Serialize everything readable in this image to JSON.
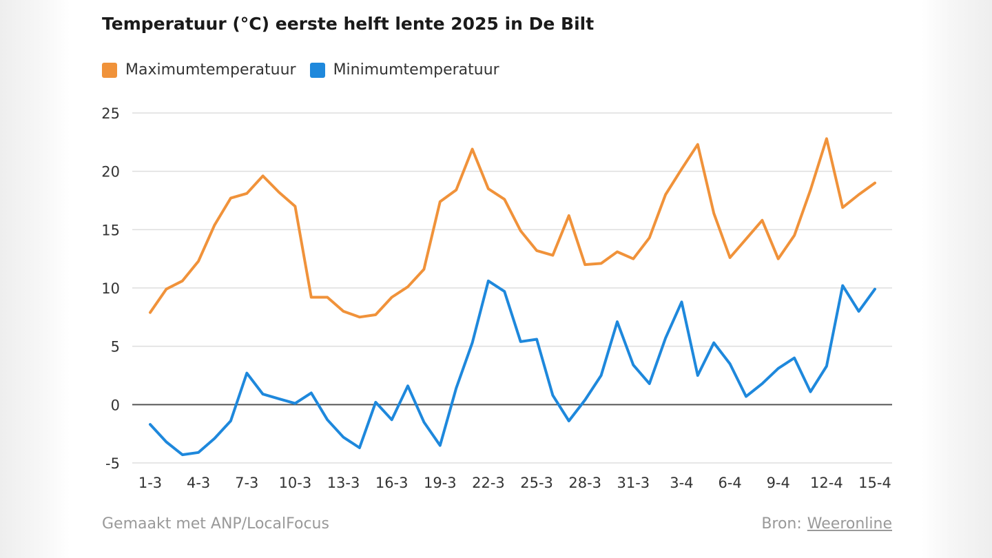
{
  "chart_data": {
    "type": "line",
    "title": "Temperatuur (°C) eerste helft lente 2025 in De Bilt",
    "xlabel": "",
    "ylabel": "",
    "x": [
      "1-3",
      "2-3",
      "3-3",
      "4-3",
      "5-3",
      "6-3",
      "7-3",
      "8-3",
      "9-3",
      "10-3",
      "11-3",
      "12-3",
      "13-3",
      "14-3",
      "15-3",
      "16-3",
      "17-3",
      "18-3",
      "19-3",
      "20-3",
      "21-3",
      "22-3",
      "23-3",
      "24-3",
      "25-3",
      "26-3",
      "27-3",
      "28-3",
      "29-3",
      "30-3",
      "31-3",
      "1-4",
      "2-4",
      "3-4",
      "4-4",
      "5-4",
      "6-4",
      "7-4",
      "8-4",
      "9-4",
      "10-4",
      "11-4",
      "12-4",
      "13-4",
      "14-4",
      "15-4"
    ],
    "tick_labels": [
      "1-3",
      "4-3",
      "7-3",
      "10-3",
      "13-3",
      "16-3",
      "19-3",
      "22-3",
      "25-3",
      "28-3",
      "31-3",
      "3-4",
      "6-4",
      "9-4",
      "12-4",
      "15-4"
    ],
    "y_ticks": [
      25,
      20,
      15,
      10,
      5,
      0,
      -5
    ],
    "ylim": [
      -5,
      25
    ],
    "grid": true,
    "legend_position": "top-left",
    "series": [
      {
        "name": "Maximumtemperatuur",
        "color": "#F0923A",
        "values": [
          7.9,
          9.9,
          10.6,
          12.3,
          15.4,
          17.7,
          18.1,
          19.6,
          18.2,
          17.0,
          9.2,
          9.2,
          8.0,
          7.5,
          7.7,
          9.2,
          10.1,
          11.6,
          17.4,
          18.4,
          21.9,
          18.5,
          17.6,
          14.9,
          13.2,
          12.8,
          16.2,
          12.0,
          12.1,
          13.1,
          12.5,
          14.3,
          18.0,
          20.2,
          22.3,
          16.4,
          12.6,
          14.2,
          15.8,
          12.5,
          14.5,
          18.4,
          22.8,
          16.9,
          18.0,
          19.0
        ]
      },
      {
        "name": "Minimumtemperatuur",
        "color": "#1E88DC",
        "values": [
          -1.7,
          -3.2,
          -4.3,
          -4.1,
          -2.9,
          -1.4,
          2.7,
          0.9,
          0.5,
          0.1,
          1.0,
          -1.3,
          -2.8,
          -3.7,
          0.2,
          -1.3,
          1.6,
          -1.5,
          -3.5,
          1.4,
          5.3,
          10.6,
          9.7,
          5.4,
          5.6,
          0.8,
          -1.4,
          0.4,
          2.5,
          7.1,
          3.4,
          1.8,
          5.7,
          8.8,
          2.5,
          5.3,
          3.5,
          0.7,
          1.8,
          3.1,
          4.0,
          1.1,
          3.3,
          10.2,
          8.0,
          9.9
        ]
      }
    ]
  },
  "footer": {
    "credit": "Gemaakt met ANP/LocalFocus",
    "source_label": "Bron:",
    "source_link": "Weeronline"
  }
}
